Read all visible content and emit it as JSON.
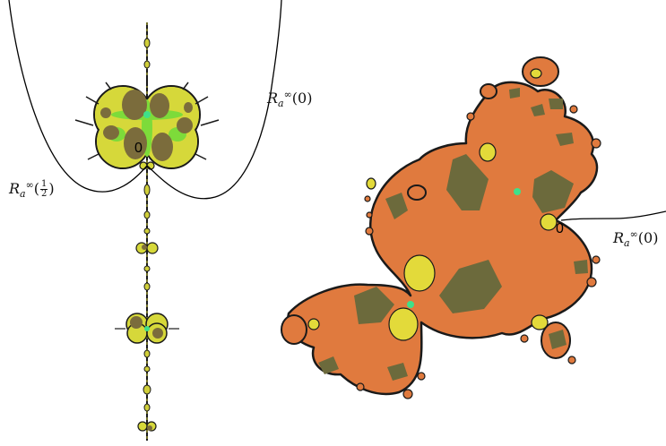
{
  "labels": {
    "left_ray_zero": {
      "base": "R",
      "sup": "∞",
      "sub": "a",
      "arg": "(0)"
    },
    "left_ray_half": {
      "base": "R",
      "sup": "∞",
      "sub": "a",
      "arg_open": "(",
      "num": "1",
      "den": "2",
      "arg_close": ")"
    },
    "right_ray_zero": {
      "base": "R",
      "sup": "∞",
      "sub": "a",
      "arg": "(0)"
    },
    "left_origin": "0",
    "right_origin": "0"
  },
  "colors": {
    "left_fill": "#d6d83a",
    "left_petal": "#7b6c3c",
    "left_bright": "#7ddb3a",
    "right_fill": "#e07a3e",
    "right_petal": "#6c6a3c",
    "right_yellow": "#e3da3a",
    "critical_point": "#3fe08a",
    "outline": "#1a1a1a",
    "ray": "#000000"
  }
}
